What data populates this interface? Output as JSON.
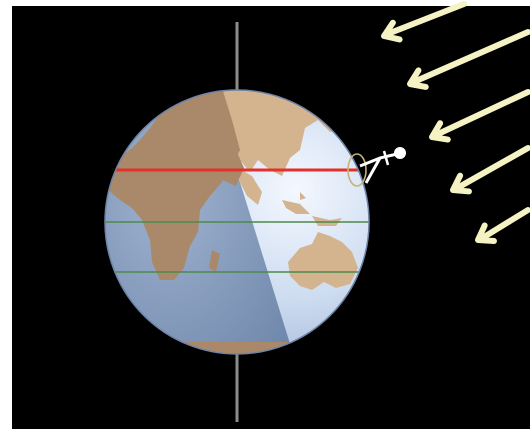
{
  "diagram": {
    "icons": {
      "earth": "globe-icon",
      "observer": "stick-figure-icon",
      "sun_rays": "arrow-icon"
    },
    "colors": {
      "frame": "#ffffff",
      "background": "#000000",
      "day_ocean": "#c9d8ee",
      "night_ocean": "#8ea4c4",
      "land_day": "#d3b48f",
      "land_night": "#a9896a",
      "axis": "#8c8c8c",
      "latitude_marked": "#e2302a",
      "latitude_other": "#4d8a4a",
      "sun_rays": "#f5f2c4",
      "observer": "#ffffff"
    },
    "sun_rays_count": 5
  }
}
